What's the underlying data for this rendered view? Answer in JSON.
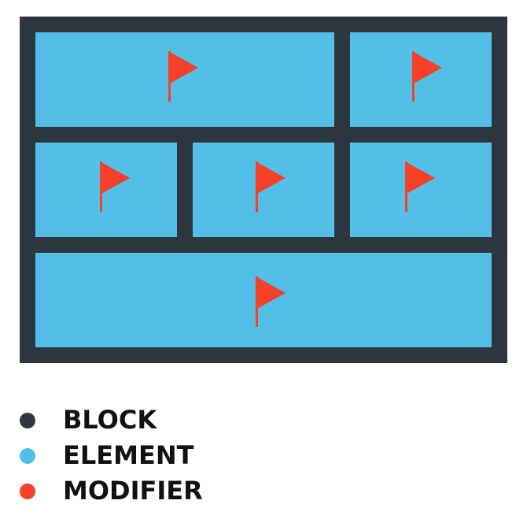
{
  "colors": {
    "block": "#2e3640",
    "element": "#53bfe6",
    "modifier": "#f44127"
  },
  "diagram": {
    "modifier_icon": "flag-icon"
  },
  "legend": {
    "items": [
      {
        "label": "BLOCK",
        "color": "#2e3640"
      },
      {
        "label": "ELEMENT",
        "color": "#53bfe6"
      },
      {
        "label": "MODIFIER",
        "color": "#f44127"
      }
    ]
  }
}
